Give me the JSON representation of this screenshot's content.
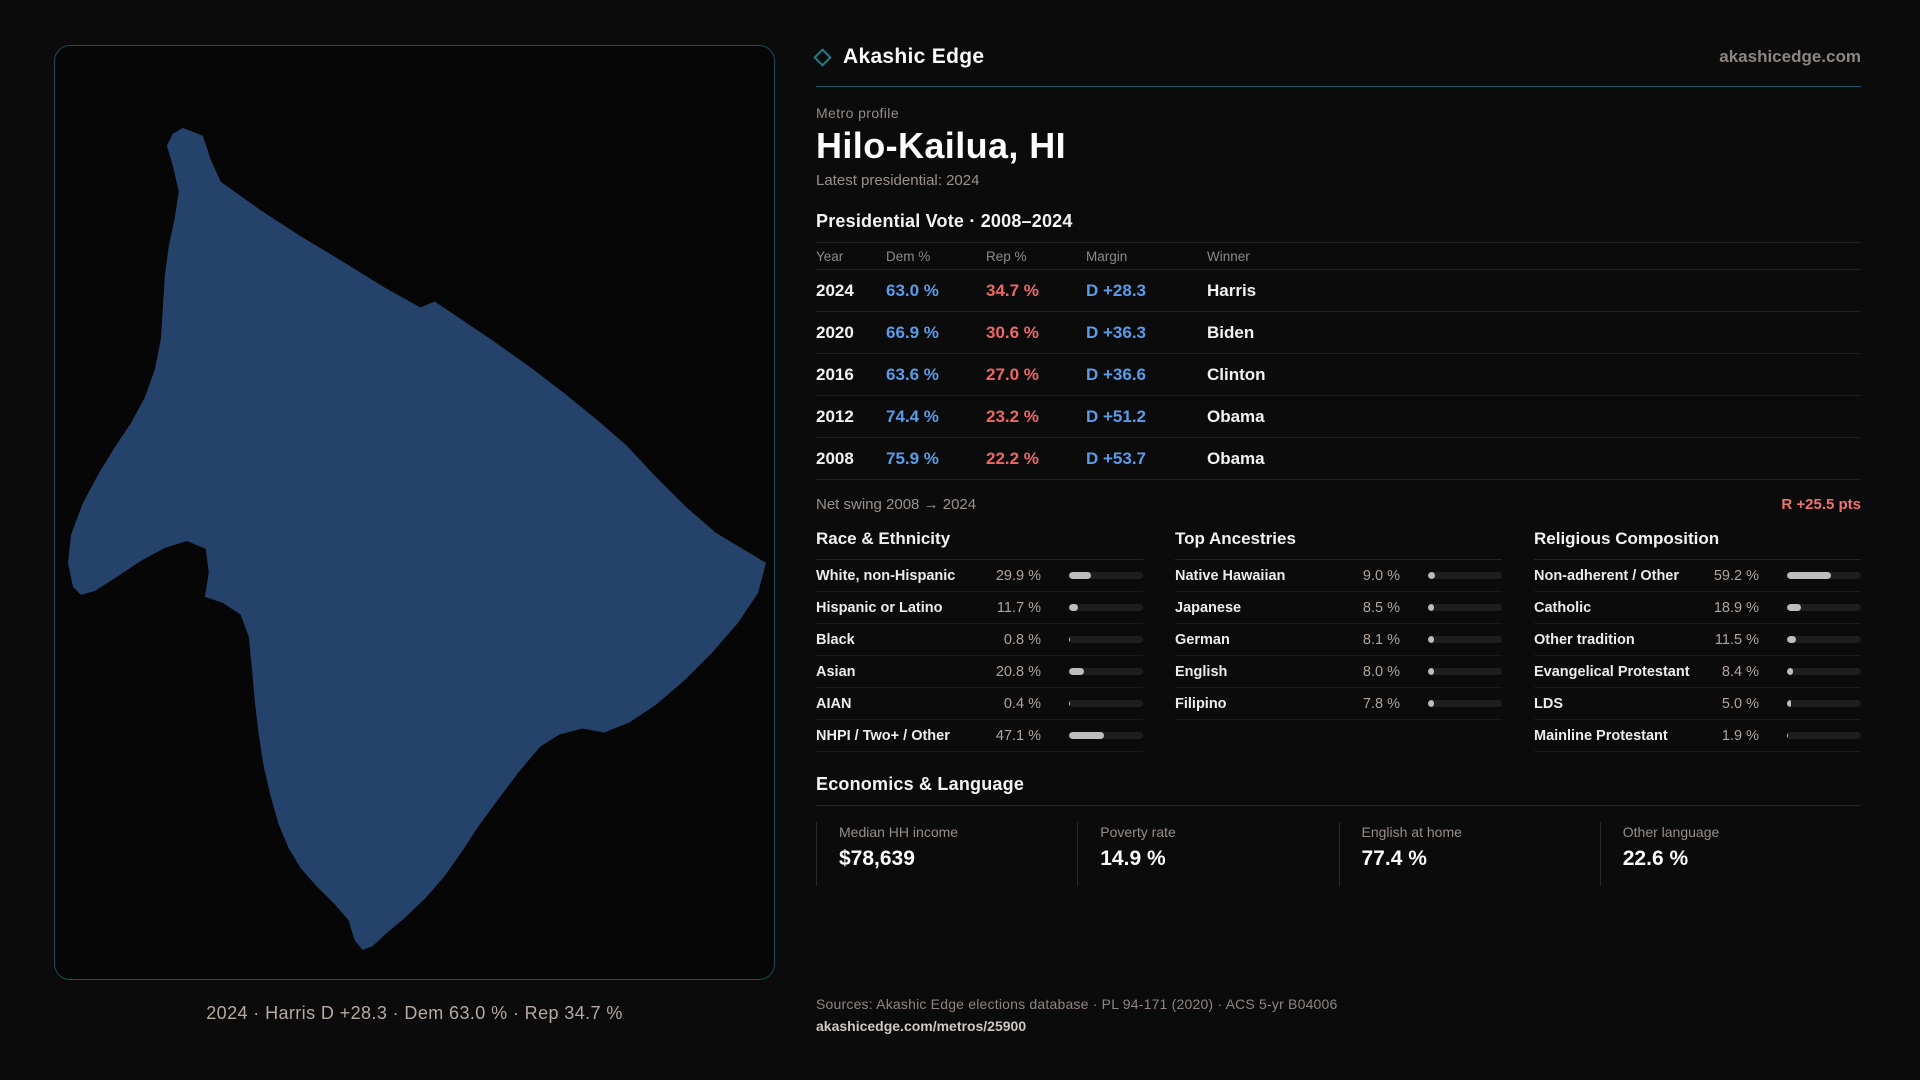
{
  "brand": {
    "logo_icon": "diamond-icon",
    "title": "Akashic Edge",
    "domain": "akashicedge.com"
  },
  "profile": {
    "eyebrow": "Metro profile",
    "title": "Hilo-Kailua, HI",
    "subtitle": "Latest presidential: 2024"
  },
  "map": {
    "region_name": "Hilo-Kailua, HI",
    "caption": "2024 · Harris D +28.3 · Dem 63.0 % · Rep 34.7 %",
    "island_fill": "#25426b",
    "panel_border": "#164d56"
  },
  "vote_table": {
    "title": "Presidential Vote · 2008–2024",
    "columns": [
      "Year",
      "Dem %",
      "Rep %",
      "Margin",
      "Winner"
    ],
    "rows": [
      {
        "year": "2024",
        "dem": "63.0 %",
        "rep": "34.7 %",
        "margin": "D +28.3",
        "winner": "Harris"
      },
      {
        "year": "2020",
        "dem": "66.9 %",
        "rep": "30.6 %",
        "margin": "D +36.3",
        "winner": "Biden"
      },
      {
        "year": "2016",
        "dem": "63.6 %",
        "rep": "27.0 %",
        "margin": "D +36.6",
        "winner": "Clinton"
      },
      {
        "year": "2012",
        "dem": "74.4 %",
        "rep": "23.2 %",
        "margin": "D +51.2",
        "winner": "Obama"
      },
      {
        "year": "2008",
        "dem": "75.9 %",
        "rep": "22.2 %",
        "margin": "D +53.7",
        "winner": "Obama"
      }
    ]
  },
  "net_swing": {
    "label": "Net swing 2008 → 2024",
    "value": "R +25.5 pts"
  },
  "demographics": [
    {
      "title": "Race & Ethnicity",
      "rows": [
        {
          "label": "White, non-Hispanic",
          "value": "29.9 %",
          "pct": 29.9
        },
        {
          "label": "Hispanic or Latino",
          "value": "11.7 %",
          "pct": 11.7
        },
        {
          "label": "Black",
          "value": "0.8 %",
          "pct": 0.8
        },
        {
          "label": "Asian",
          "value": "20.8 %",
          "pct": 20.8
        },
        {
          "label": "AIAN",
          "value": "0.4 %",
          "pct": 0.4
        },
        {
          "label": "NHPI / Two+ / Other",
          "value": "47.1 %",
          "pct": 47.1
        }
      ]
    },
    {
      "title": "Top Ancestries",
      "rows": [
        {
          "label": "Native Hawaiian",
          "value": "9.0 %",
          "pct": 9.0
        },
        {
          "label": "Japanese",
          "value": "8.5 %",
          "pct": 8.5
        },
        {
          "label": "German",
          "value": "8.1 %",
          "pct": 8.1
        },
        {
          "label": "English",
          "value": "8.0 %",
          "pct": 8.0
        },
        {
          "label": "Filipino",
          "value": "7.8 %",
          "pct": 7.8
        }
      ]
    },
    {
      "title": "Religious Composition",
      "rows": [
        {
          "label": "Non-adherent / Other",
          "value": "59.2 %",
          "pct": 59.2
        },
        {
          "label": "Catholic",
          "value": "18.9 %",
          "pct": 18.9
        },
        {
          "label": "Other tradition",
          "value": "11.5 %",
          "pct": 11.5
        },
        {
          "label": "Evangelical Protestant",
          "value": "8.4 %",
          "pct": 8.4
        },
        {
          "label": "LDS",
          "value": "5.0 %",
          "pct": 5.0
        },
        {
          "label": "Mainline Protestant",
          "value": "1.9 %",
          "pct": 1.9
        }
      ]
    }
  ],
  "economics": {
    "title": "Economics & Language",
    "cards": [
      {
        "label": "Median HH income",
        "value": "$78,639"
      },
      {
        "label": "Poverty rate",
        "value": "14.9 %"
      },
      {
        "label": "English at home",
        "value": "77.4 %"
      },
      {
        "label": "Other language",
        "value": "22.6 %"
      }
    ]
  },
  "footer": {
    "sources": "Sources: Akashic Edge elections database · PL 94-171 (2020) · ACS 5-yr B04006",
    "permalink": "akashicedge.com/metros/25900"
  },
  "colors": {
    "dem_blue": "#5b9be8",
    "rep_red": "#ee6767",
    "swing_red": "#f07272",
    "accent_teal": "#1d5a66",
    "bar_fill": "#bdbdbf",
    "bar_track": "#1e1e21"
  }
}
